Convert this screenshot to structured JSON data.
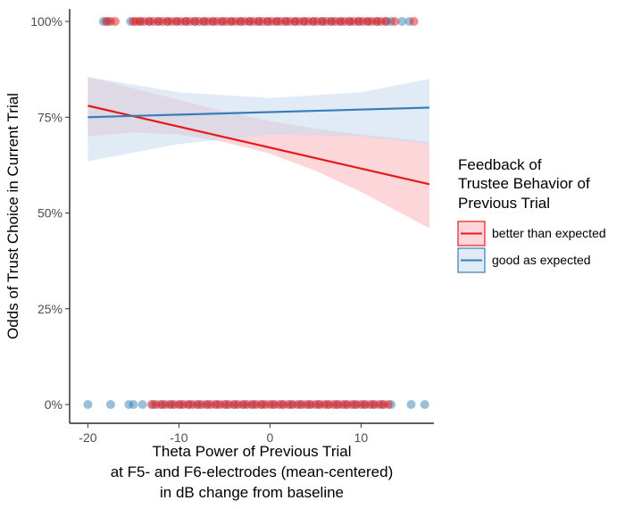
{
  "chart_data": {
    "type": "scatter",
    "title": "",
    "xlabel_lines": [
      "Theta Power of Previous Trial",
      "at F5- and F6-electrodes (mean-centered)",
      "in dB change from baseline"
    ],
    "ylabel": "Odds of Trust Choice in Current Trial",
    "xlim": [
      -22,
      18
    ],
    "ylim": [
      0,
      100
    ],
    "x_ticks": [
      -20,
      -10,
      0,
      10
    ],
    "x_tick_labels": [
      "-20",
      "-10",
      "0",
      "10"
    ],
    "y_ticks": [
      0,
      25,
      50,
      75,
      100
    ],
    "y_tick_labels": [
      "0%",
      "25%",
      "50%",
      "75%",
      "100%"
    ],
    "grid": false,
    "legend": {
      "position": "right",
      "title_lines": [
        "Feedback of",
        "Trustee Behavior of",
        "Previous Trial"
      ],
      "entries": [
        {
          "label": "better than expected",
          "color": "#e41a1c"
        },
        {
          "label": "good as expected",
          "color": "#377eb8"
        }
      ]
    },
    "series": [
      {
        "name": "better than expected",
        "color": "#e41a1c",
        "fill": "#fbb4b9",
        "fit_line": {
          "x": [
            -20,
            17.5
          ],
          "y": [
            78,
            57.5
          ]
        },
        "ci_band": {
          "x": [
            -20,
            -15,
            -10,
            -5,
            0,
            5,
            10,
            17.5
          ],
          "lower": [
            70,
            71,
            70.5,
            68.5,
            65.5,
            61,
            55.5,
            46
          ],
          "upper": [
            85.5,
            82.5,
            79.5,
            76.5,
            74,
            72,
            70.5,
            68.5
          ]
        },
        "points_y100_x": [
          -18,
          -17.5,
          -17,
          -15,
          -14.7,
          -14.3,
          -13.8,
          -13.3,
          -12.8,
          -12.3,
          -11.8,
          -11.3,
          -10.8,
          -10.3,
          -9.8,
          -9.3,
          -8.8,
          -8.3,
          -7.8,
          -7.3,
          -6.8,
          -6.3,
          -5.8,
          -5.3,
          -4.8,
          -4.3,
          -3.8,
          -3.3,
          -2.8,
          -2.3,
          -1.8,
          -1.3,
          -0.8,
          -0.3,
          0.2,
          0.7,
          1.2,
          1.7,
          2.2,
          2.7,
          3.2,
          3.7,
          4.2,
          4.7,
          5.2,
          5.7,
          6.2,
          6.7,
          7.2,
          7.7,
          8.2,
          8.7,
          9.2,
          9.7,
          10.2,
          10.7,
          11.2,
          11.7,
          12.2,
          12.7,
          13.7,
          15.8
        ],
        "points_y0_x": [
          -13,
          -12.5,
          -12,
          -11.5,
          -11,
          -10.5,
          -10,
          -9.5,
          -9,
          -8.5,
          -8,
          -7.5,
          -7,
          -6.5,
          -6,
          -5.5,
          -5,
          -4.5,
          -4,
          -3.5,
          -3,
          -2.5,
          -2,
          -1.5,
          -1,
          -0.5,
          0,
          0.5,
          1,
          1.5,
          2,
          2.5,
          3,
          3.5,
          4,
          4.5,
          5,
          5.5,
          6,
          6.5,
          7,
          7.5,
          8,
          8.5,
          9,
          9.5,
          10,
          10.5,
          11,
          11.5,
          12,
          12.5,
          13
        ]
      },
      {
        "name": "good as expected",
        "color": "#377eb8",
        "fill": "#c6dbef",
        "fit_line": {
          "x": [
            -20,
            17.5
          ],
          "y": [
            75,
            77.5
          ]
        },
        "ci_band": {
          "x": [
            -20,
            -10,
            0,
            10,
            17.5
          ],
          "lower": [
            63.5,
            68,
            70.5,
            70,
            68
          ],
          "upper": [
            85.5,
            81.5,
            80,
            81.5,
            85
          ]
        },
        "points_y100_x": [
          -18.3,
          -17.8,
          -15.3,
          -14.2,
          -13.2,
          -12.2,
          -11.2,
          -10.2,
          -9.2,
          -8.2,
          -7.2,
          -6.2,
          -5.2,
          -4.2,
          -3.2,
          -2.2,
          -1.2,
          -0.2,
          0.8,
          1.8,
          2.8,
          3.8,
          4.8,
          5.8,
          6.8,
          7.8,
          8.8,
          9.8,
          10.8,
          11.8,
          12.8,
          13.3,
          14.5,
          15.3
        ],
        "points_y0_x": [
          -20,
          -17.5,
          -15.5,
          -15,
          -14,
          -12.8,
          -11.8,
          -10.8,
          -9.8,
          -8.8,
          -7.8,
          -6.8,
          -5.8,
          -4.8,
          -3.8,
          -2.8,
          -1.8,
          -0.8,
          0.3,
          1.3,
          2.3,
          3.3,
          4.3,
          5.3,
          6.3,
          7.3,
          8.3,
          9.3,
          10.3,
          11.3,
          12.3,
          13.3,
          15.5,
          17
        ]
      }
    ]
  }
}
